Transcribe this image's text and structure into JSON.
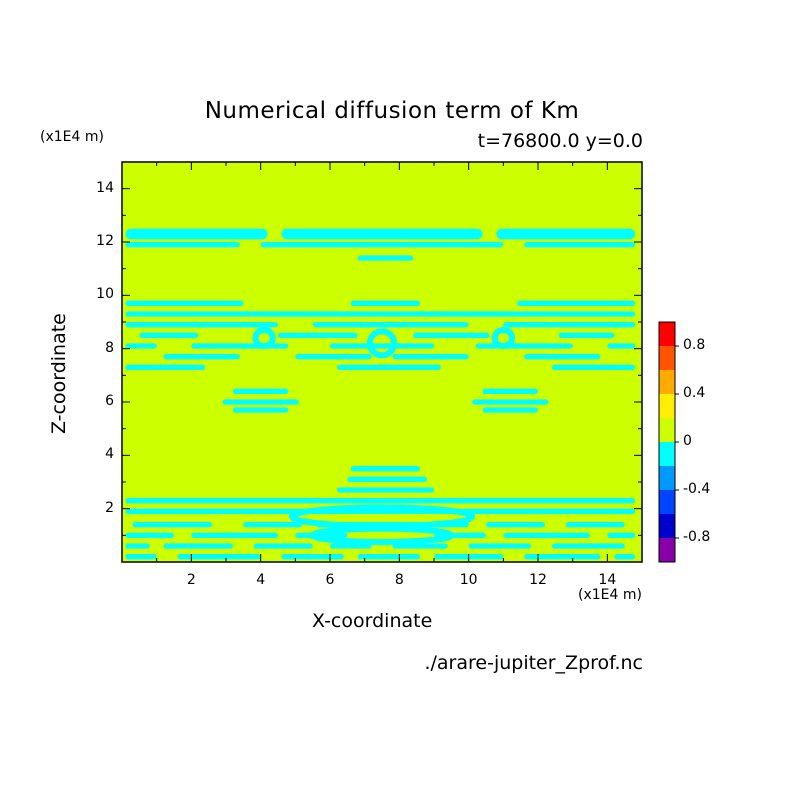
{
  "page": {
    "title": "Numerical diffusion term of Km",
    "subtitle": "t=76800.0 y=0.0",
    "source_file": "./arare-jupiter_Zprof.nc"
  },
  "chart_data": {
    "type": "heatmap",
    "title": "Numerical diffusion term of Km",
    "subtitle": "t=76800.0 y=0.0",
    "xlabel": "X-coordinate",
    "ylabel": "Z-coordinate",
    "x_units": "(x1E4 m)",
    "z_units": "(x1E4 m)",
    "xlim": [
      0,
      15
    ],
    "ylim": [
      0,
      15
    ],
    "x_ticks": [
      2,
      4,
      6,
      8,
      10,
      12,
      14
    ],
    "y_ticks": [
      2,
      4,
      6,
      8,
      10,
      12,
      14
    ],
    "colorbar": {
      "levels": [
        -1.0,
        -0.8,
        -0.6,
        -0.4,
        -0.2,
        0,
        0.2,
        0.4,
        0.6,
        0.8,
        1.0
      ],
      "colors": [
        "#8800a8",
        "#0000cc",
        "#0044ff",
        "#0099ff",
        "#00ffff",
        "#ccff00",
        "#ffee00",
        "#ffaa00",
        "#ff5500",
        "#ff0000",
        "#ffaaaa"
      ],
      "tick_labels": [
        "-0.8",
        "-0.4",
        "0",
        "0.4",
        "0.8"
      ],
      "tick_values": [
        -0.8,
        -0.4,
        0,
        0.4,
        0.8
      ]
    },
    "background_value": 0.05,
    "background_color": "#ccff00",
    "pattern_color": "#00ffff",
    "bands": [
      {
        "z": [
          12.1,
          12.5
        ],
        "x": [
          [
            0.1,
            4.2
          ],
          [
            4.6,
            10.4
          ],
          [
            10.8,
            14.8
          ]
        ]
      },
      {
        "z": [
          11.8,
          12.0
        ],
        "x": [
          [
            0.1,
            3.4
          ],
          [
            4.0,
            11.0
          ],
          [
            11.6,
            14.8
          ]
        ]
      },
      {
        "z": [
          11.3,
          11.5
        ],
        "x": [
          [
            6.8,
            8.4
          ]
        ]
      },
      {
        "z": [
          9.6,
          9.8
        ],
        "x": [
          [
            0.1,
            3.5
          ],
          [
            6.6,
            8.6
          ],
          [
            11.4,
            14.8
          ]
        ]
      },
      {
        "z": [
          9.2,
          9.4
        ],
        "x": [
          [
            0.1,
            14.8
          ]
        ]
      },
      {
        "z": [
          8.8,
          9.0
        ],
        "x": [
          [
            0.1,
            4.5
          ],
          [
            5.5,
            10.0
          ],
          [
            11.0,
            14.8
          ]
        ]
      },
      {
        "z": [
          8.4,
          8.6
        ],
        "x": [
          [
            0.5,
            2.2
          ],
          [
            4.5,
            6.8
          ],
          [
            8.4,
            10.6
          ],
          [
            12.6,
            14.2
          ]
        ]
      },
      {
        "z": [
          8.0,
          8.2
        ],
        "x": [
          [
            0.1,
            1.0
          ],
          [
            2.0,
            4.8
          ],
          [
            6.0,
            9.0
          ],
          [
            10.2,
            13.0
          ],
          [
            14.0,
            14.8
          ]
        ]
      },
      {
        "z": [
          7.6,
          7.8
        ],
        "x": [
          [
            1.2,
            3.4
          ],
          [
            5.0,
            7.2
          ],
          [
            7.8,
            10.0
          ],
          [
            11.6,
            13.8
          ]
        ]
      },
      {
        "z": [
          7.2,
          7.4
        ],
        "x": [
          [
            0.1,
            2.4
          ],
          [
            6.2,
            9.2
          ],
          [
            12.4,
            14.8
          ]
        ]
      },
      {
        "z": [
          6.3,
          6.5
        ],
        "x": [
          [
            3.2,
            4.8
          ],
          [
            10.4,
            12.0
          ]
        ]
      },
      {
        "z": [
          5.9,
          6.1
        ],
        "x": [
          [
            2.9,
            5.1
          ],
          [
            10.1,
            12.3
          ]
        ]
      },
      {
        "z": [
          5.6,
          5.8
        ],
        "x": [
          [
            3.2,
            4.8
          ],
          [
            10.4,
            12.0
          ]
        ]
      },
      {
        "z": [
          3.4,
          3.6
        ],
        "x": [
          [
            6.6,
            8.6
          ]
        ]
      },
      {
        "z": [
          3.0,
          3.2
        ],
        "x": [
          [
            6.5,
            8.8
          ]
        ]
      },
      {
        "z": [
          2.6,
          2.8
        ],
        "x": [
          [
            6.2,
            9.0
          ]
        ]
      },
      {
        "z": [
          2.2,
          2.4
        ],
        "x": [
          [
            0.1,
            14.8
          ]
        ]
      },
      {
        "z": [
          1.8,
          2.0
        ],
        "x": [
          [
            0.1,
            14.8
          ]
        ]
      },
      {
        "z": [
          1.3,
          1.5
        ],
        "x": [
          [
            0.3,
            2.6
          ],
          [
            3.5,
            5.2
          ],
          [
            5.6,
            10.0
          ],
          [
            10.5,
            12.2
          ],
          [
            12.8,
            14.5
          ]
        ]
      },
      {
        "z": [
          0.9,
          1.1
        ],
        "x": [
          [
            0.1,
            1.5
          ],
          [
            2.0,
            4.5
          ],
          [
            5.0,
            6.5
          ],
          [
            9.0,
            10.5
          ],
          [
            11.0,
            13.5
          ],
          [
            14.0,
            14.8
          ]
        ]
      },
      {
        "z": [
          0.5,
          0.7
        ],
        "x": [
          [
            0.1,
            0.8
          ],
          [
            1.2,
            3.2
          ],
          [
            3.8,
            5.5
          ],
          [
            6.0,
            7.2
          ],
          [
            7.8,
            9.4
          ],
          [
            10.0,
            11.8
          ],
          [
            12.4,
            14.5
          ]
        ]
      },
      {
        "z": [
          0.1,
          0.3
        ],
        "x": [
          [
            0.1,
            1.0
          ],
          [
            1.6,
            4.0
          ],
          [
            4.6,
            6.4
          ],
          [
            6.8,
            8.6
          ],
          [
            9.0,
            11.0
          ],
          [
            11.6,
            13.8
          ],
          [
            14.2,
            14.8
          ]
        ]
      }
    ],
    "blobs": [
      {
        "x": 7.5,
        "z": 8.2,
        "rx": 0.35,
        "rz": 0.45
      },
      {
        "x": 4.1,
        "z": 8.4,
        "rx": 0.25,
        "rz": 0.3
      },
      {
        "x": 11.0,
        "z": 8.4,
        "rx": 0.25,
        "rz": 0.3
      },
      {
        "x": 7.5,
        "z": 1.7,
        "rx": 2.6,
        "rz": 0.35
      },
      {
        "x": 7.5,
        "z": 1.0,
        "rx": 2.0,
        "rz": 0.25
      }
    ]
  }
}
